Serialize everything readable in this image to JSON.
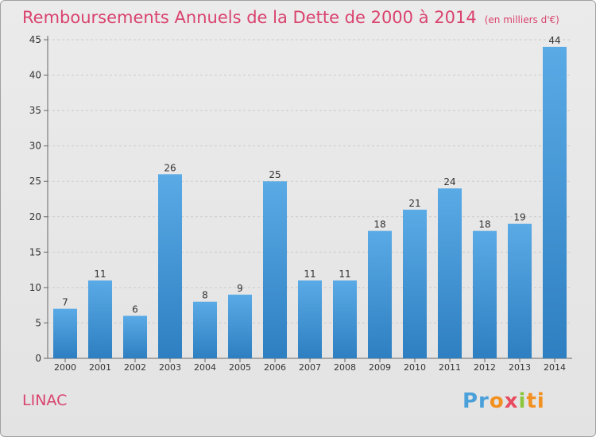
{
  "title": "Remboursements Annuels de la Dette de 2000 à 2014",
  "unit": "(en milliers d'€)",
  "place": "LINAC",
  "logo": [
    "Pr",
    "o",
    "x",
    "i",
    "ti"
  ],
  "colors": {
    "title": "#d9436e",
    "bar_light": "#5aaae6",
    "bar_dark": "#2e7fc1"
  },
  "chart_data": {
    "type": "bar",
    "categories": [
      "2000",
      "2001",
      "2002",
      "2003",
      "2004",
      "2005",
      "2006",
      "2007",
      "2008",
      "2009",
      "2010",
      "2011",
      "2012",
      "2013",
      "2014"
    ],
    "values": [
      7,
      11,
      6,
      26,
      8,
      9,
      25,
      11,
      11,
      18,
      21,
      24,
      18,
      19,
      44
    ],
    "ylim": [
      0,
      45
    ],
    "yticks": [
      0,
      5,
      10,
      15,
      20,
      25,
      30,
      35,
      40,
      45
    ],
    "grid": true
  }
}
